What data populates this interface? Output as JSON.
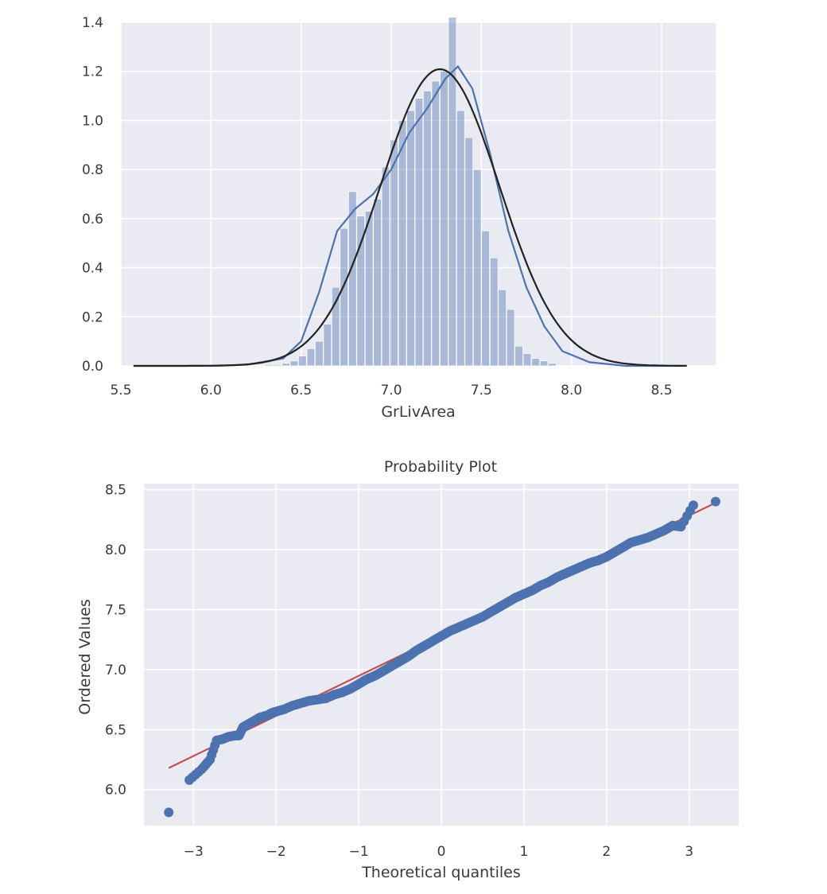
{
  "chart_data": [
    {
      "type": "bar",
      "subtype": "histogram with kde and fitted normal",
      "title": "",
      "xlabel": "GrLivArea",
      "ylabel": "",
      "xlim": [
        5.5,
        8.8
      ],
      "ylim": [
        0,
        1.4
      ],
      "grid": true,
      "xticks": [
        "5.5",
        "6.0",
        "6.5",
        "7.0",
        "7.5",
        "8.0",
        "8.5"
      ],
      "yticks": [
        "0.0",
        "0.2",
        "0.4",
        "0.6",
        "0.8",
        "1.0",
        "1.2",
        "1.4"
      ],
      "bin_width": 0.0462,
      "bins": [
        {
          "x": 6.325,
          "height": 0.005
        },
        {
          "x": 6.371,
          "height": 0.005
        },
        {
          "x": 6.417,
          "height": 0.01
        },
        {
          "x": 6.463,
          "height": 0.02
        },
        {
          "x": 6.509,
          "height": 0.04
        },
        {
          "x": 6.556,
          "height": 0.07
        },
        {
          "x": 6.602,
          "height": 0.1
        },
        {
          "x": 6.648,
          "height": 0.17
        },
        {
          "x": 6.694,
          "height": 0.32
        },
        {
          "x": 6.74,
          "height": 0.56
        },
        {
          "x": 6.787,
          "height": 0.71
        },
        {
          "x": 6.833,
          "height": 0.61
        },
        {
          "x": 6.879,
          "height": 0.63
        },
        {
          "x": 6.925,
          "height": 0.68
        },
        {
          "x": 6.971,
          "height": 0.81
        },
        {
          "x": 7.017,
          "height": 0.92
        },
        {
          "x": 7.064,
          "height": 1.0
        },
        {
          "x": 7.11,
          "height": 1.04
        },
        {
          "x": 7.156,
          "height": 1.09
        },
        {
          "x": 7.202,
          "height": 1.12
        },
        {
          "x": 7.248,
          "height": 1.16
        },
        {
          "x": 7.295,
          "height": 1.2
        },
        {
          "x": 7.341,
          "height": 1.42
        },
        {
          "x": 7.387,
          "height": 1.04
        },
        {
          "x": 7.433,
          "height": 0.93
        },
        {
          "x": 7.479,
          "height": 0.8
        },
        {
          "x": 7.525,
          "height": 0.55
        },
        {
          "x": 7.572,
          "height": 0.44
        },
        {
          "x": 7.618,
          "height": 0.31
        },
        {
          "x": 7.664,
          "height": 0.23
        },
        {
          "x": 7.71,
          "height": 0.08
        },
        {
          "x": 7.756,
          "height": 0.05
        },
        {
          "x": 7.803,
          "height": 0.03
        },
        {
          "x": 7.849,
          "height": 0.02
        },
        {
          "x": 7.895,
          "height": 0.01
        }
      ],
      "series": [
        {
          "kind": "kde",
          "color": "#4c72b0",
          "points": [
            [
              5.57,
              0.0
            ],
            [
              6.0,
              0.0
            ],
            [
              6.2,
              0.005
            ],
            [
              6.4,
              0.03
            ],
            [
              6.5,
              0.1
            ],
            [
              6.6,
              0.3
            ],
            [
              6.7,
              0.55
            ],
            [
              6.8,
              0.64
            ],
            [
              6.9,
              0.7
            ],
            [
              7.0,
              0.8
            ],
            [
              7.1,
              0.95
            ],
            [
              7.2,
              1.05
            ],
            [
              7.3,
              1.17
            ],
            [
              7.37,
              1.22
            ],
            [
              7.45,
              1.13
            ],
            [
              7.55,
              0.86
            ],
            [
              7.65,
              0.55
            ],
            [
              7.75,
              0.32
            ],
            [
              7.85,
              0.16
            ],
            [
              7.95,
              0.06
            ],
            [
              8.1,
              0.015
            ],
            [
              8.3,
              0.0
            ],
            [
              8.6,
              0.0
            ]
          ]
        },
        {
          "kind": "normal fit",
          "color": "#222222",
          "mean": 7.27,
          "std": 0.33,
          "range": [
            5.57,
            8.64
          ]
        }
      ]
    },
    {
      "type": "scatter",
      "title": "Probability Plot",
      "xlabel": "Theoretical quantiles",
      "ylabel": "Ordered Values",
      "xlim": [
        -3.6,
        3.6
      ],
      "ylim": [
        5.7,
        8.55
      ],
      "grid": true,
      "xticks": [
        "−3",
        "−2",
        "−1",
        "0",
        "1",
        "2",
        "3"
      ],
      "yticks": [
        "6.0",
        "6.5",
        "7.0",
        "7.5",
        "8.0",
        "8.5"
      ],
      "points": [
        [
          -3.3,
          5.81
        ],
        [
          -3.05,
          6.08
        ],
        [
          -2.9,
          6.17
        ],
        [
          -2.8,
          6.25
        ],
        [
          -2.72,
          6.41
        ],
        [
          -2.65,
          6.42
        ],
        [
          -2.58,
          6.44
        ],
        [
          -2.5,
          6.45
        ],
        [
          -2.45,
          6.45
        ],
        [
          -2.4,
          6.52
        ],
        [
          -2.35,
          6.54
        ],
        [
          -2.3,
          6.56
        ],
        [
          -2.25,
          6.58
        ],
        [
          -2.2,
          6.6
        ],
        [
          -2.15,
          6.61
        ],
        [
          -2.1,
          6.62
        ],
        [
          -2.05,
          6.64
        ],
        [
          -2.0,
          6.65
        ],
        [
          -1.95,
          6.66
        ],
        [
          -1.9,
          6.67
        ],
        [
          -1.8,
          6.7
        ],
        [
          -1.7,
          6.72
        ],
        [
          -1.6,
          6.74
        ],
        [
          -1.5,
          6.75
        ],
        [
          -1.4,
          6.76
        ],
        [
          -1.3,
          6.79
        ],
        [
          -1.2,
          6.81
        ],
        [
          -1.1,
          6.84
        ],
        [
          -1.0,
          6.88
        ],
        [
          -0.9,
          6.92
        ],
        [
          -0.8,
          6.95
        ],
        [
          -0.7,
          6.99
        ],
        [
          -0.6,
          7.03
        ],
        [
          -0.5,
          7.07
        ],
        [
          -0.4,
          7.11
        ],
        [
          -0.3,
          7.16
        ],
        [
          -0.2,
          7.2
        ],
        [
          -0.1,
          7.24
        ],
        [
          0.0,
          7.28
        ],
        [
          0.1,
          7.32
        ],
        [
          0.2,
          7.35
        ],
        [
          0.3,
          7.38
        ],
        [
          0.4,
          7.41
        ],
        [
          0.5,
          7.44
        ],
        [
          0.6,
          7.48
        ],
        [
          0.7,
          7.52
        ],
        [
          0.8,
          7.56
        ],
        [
          0.9,
          7.6
        ],
        [
          1.0,
          7.63
        ],
        [
          1.1,
          7.66
        ],
        [
          1.2,
          7.7
        ],
        [
          1.3,
          7.73
        ],
        [
          1.4,
          7.77
        ],
        [
          1.5,
          7.8
        ],
        [
          1.6,
          7.83
        ],
        [
          1.7,
          7.86
        ],
        [
          1.8,
          7.89
        ],
        [
          1.9,
          7.91
        ],
        [
          2.0,
          7.94
        ],
        [
          2.1,
          7.98
        ],
        [
          2.2,
          8.02
        ],
        [
          2.3,
          8.06
        ],
        [
          2.4,
          8.08
        ],
        [
          2.5,
          8.1
        ],
        [
          2.6,
          8.13
        ],
        [
          2.7,
          8.16
        ],
        [
          2.8,
          8.2
        ],
        [
          2.9,
          8.19
        ],
        [
          3.05,
          8.37
        ],
        [
          3.32,
          8.4
        ]
      ],
      "fit_line": {
        "from": [
          -3.3,
          6.18
        ],
        "to": [
          3.32,
          8.39
        ],
        "color": "#c44e52"
      },
      "point_color": "#4c72b0"
    }
  ]
}
